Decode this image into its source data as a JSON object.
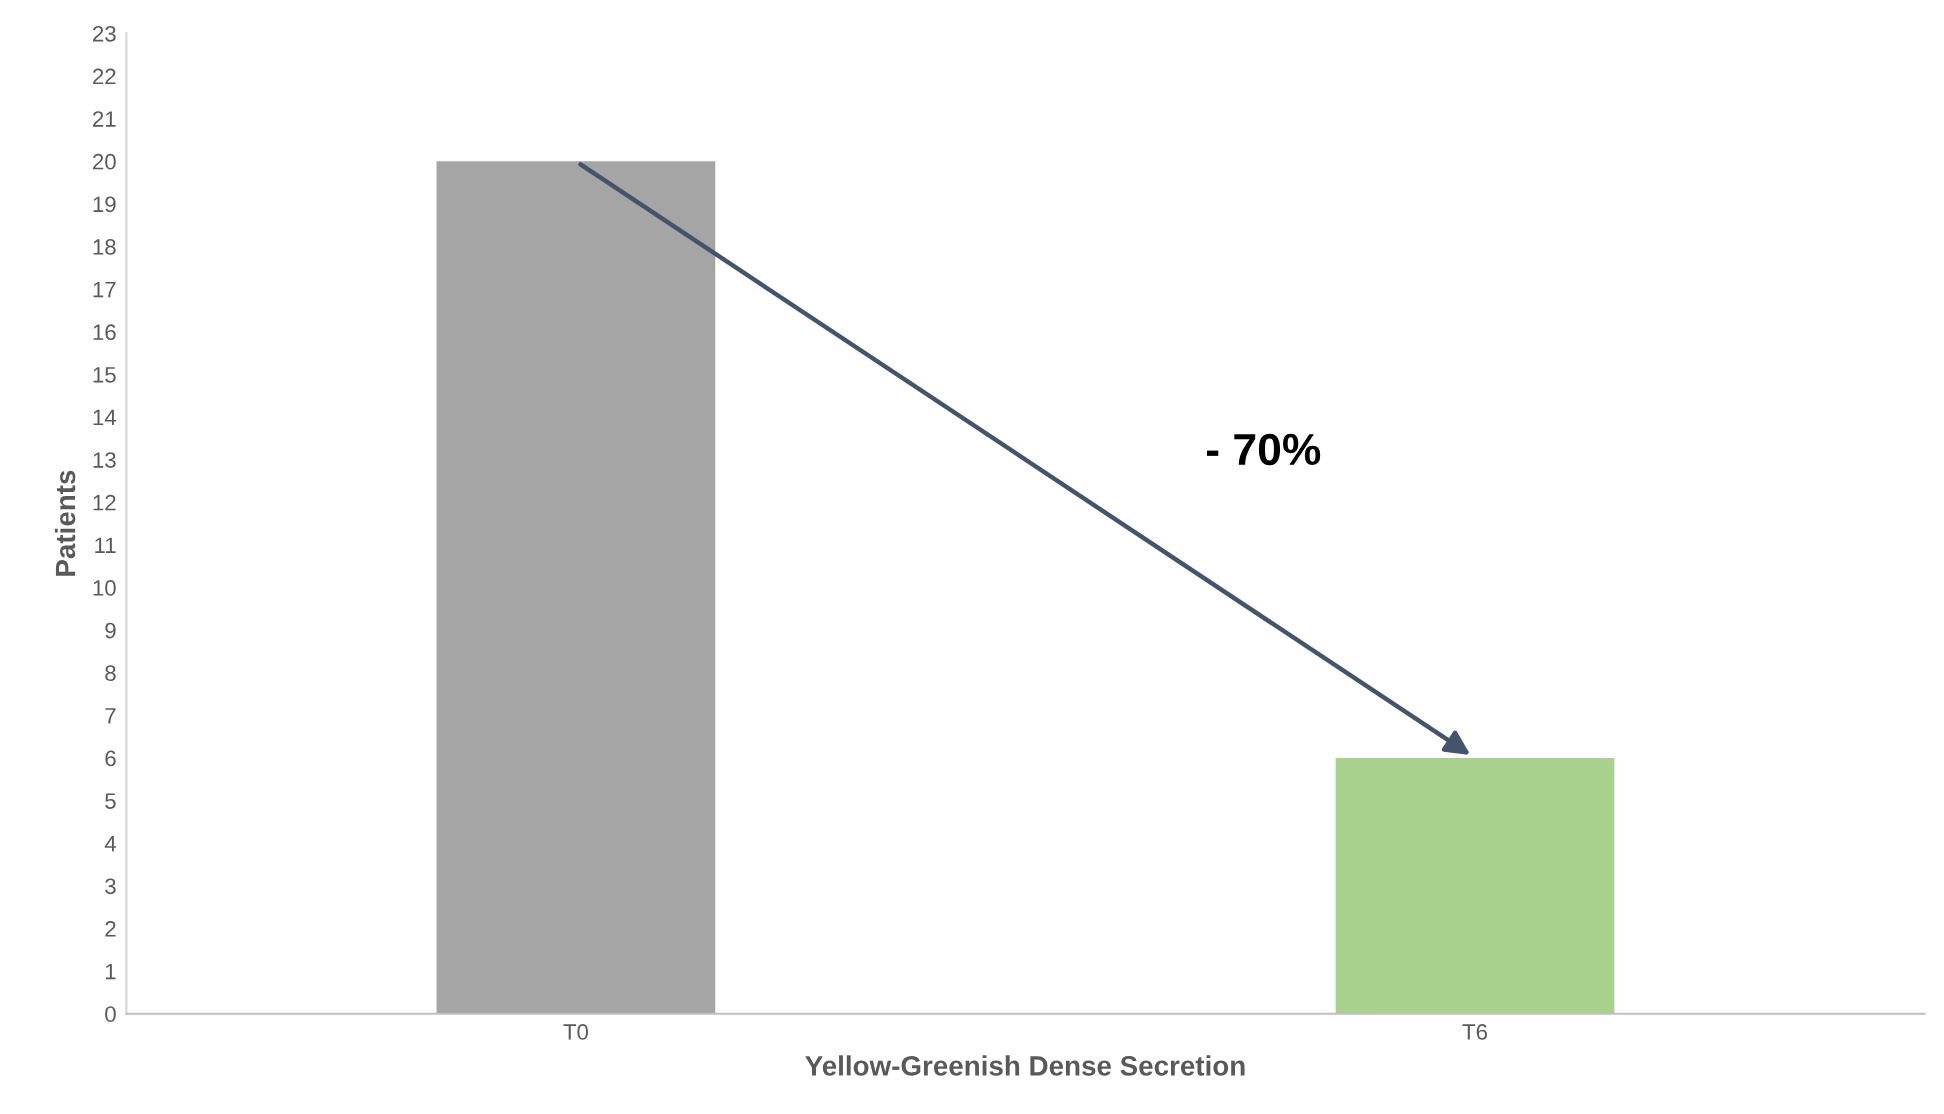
{
  "chart_data": {
    "type": "bar",
    "xlabel": "Yellow-Greenish Dense Secretion",
    "ylabel": "Patients",
    "categories": [
      "T0",
      "T6"
    ],
    "values": [
      20,
      6
    ],
    "colors": [
      "#a5a5a5",
      "#a9d18e"
    ],
    "ylim": [
      0,
      23
    ],
    "yticks": [
      0,
      1,
      2,
      3,
      4,
      5,
      6,
      7,
      8,
      9,
      10,
      11,
      12,
      13,
      14,
      15,
      16,
      17,
      18,
      19,
      20,
      21,
      22,
      23
    ],
    "grid": false,
    "annotations": [
      "- 70%"
    ]
  }
}
